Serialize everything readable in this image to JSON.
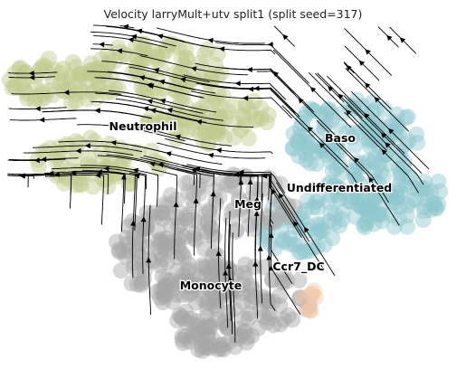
{
  "title": "Velocity larryMult+utv split1 (split seed=317)",
  "chart_data": {
    "type": "scatter",
    "subtype": "velocity-embedding-stream",
    "title": "Velocity larryMult+utv split1 (split seed=317)",
    "xlabel": "",
    "ylabel": "",
    "grid": false,
    "axes_visible": false,
    "clusters": [
      {
        "name": "Neutrophil",
        "color": "#c2c98e",
        "label": "Neutrophil"
      },
      {
        "name": "Baso",
        "color": "#8ec8cf",
        "label": "Baso"
      },
      {
        "name": "Undifferentiated",
        "color": "#8ec8cf",
        "label": "Undifferentiated"
      },
      {
        "name": "Meg",
        "color": "#b0b0b0",
        "label": "Meg"
      },
      {
        "name": "Ccr7_DC",
        "color": "#f2c7a6",
        "label": "Ccr7_DC"
      },
      {
        "name": "Monocyte",
        "color": "#a6a6a6",
        "label": "Monocyte"
      }
    ],
    "streamline_color": "#000000"
  }
}
